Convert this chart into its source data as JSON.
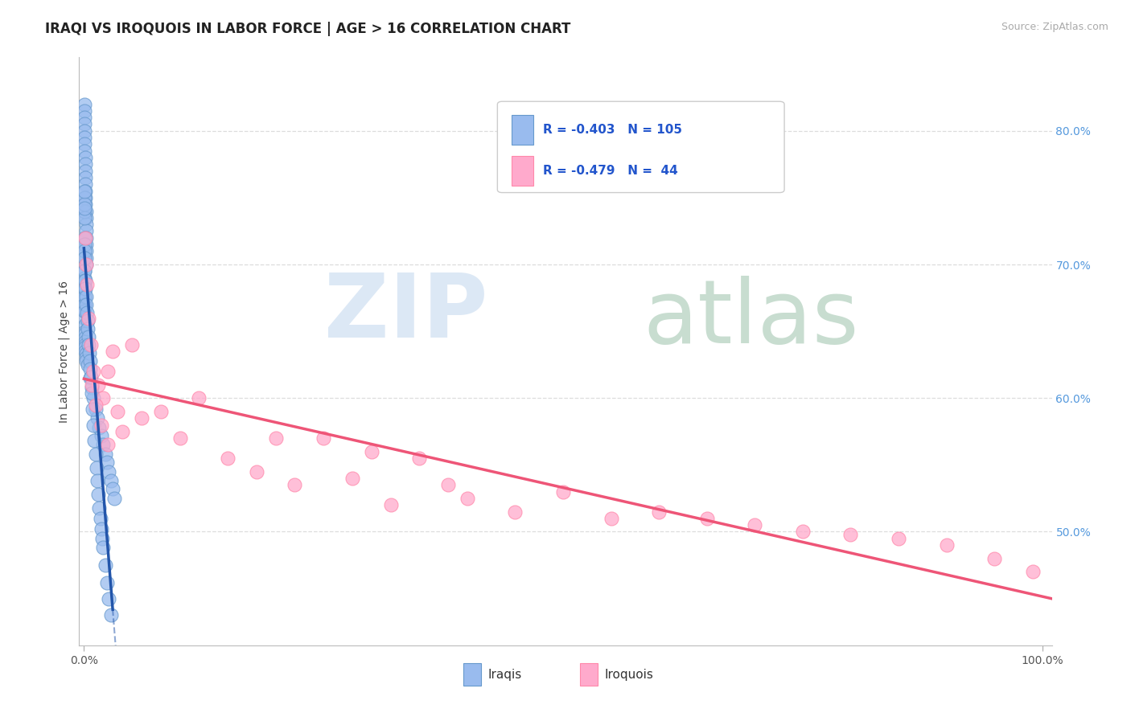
{
  "title": "IRAQI VS IROQUOIS IN LABOR FORCE | AGE > 16 CORRELATION CHART",
  "source_text": "Source: ZipAtlas.com",
  "ylabel": "In Labor Force | Age > 16",
  "xlim_min": -0.005,
  "xlim_max": 1.01,
  "ylim_min": 0.415,
  "ylim_max": 0.855,
  "xtick_labels": [
    "0.0%",
    "100.0%"
  ],
  "xtick_positions": [
    0.0,
    1.0
  ],
  "ytick_labels_right": [
    "50.0%",
    "60.0%",
    "70.0%",
    "80.0%"
  ],
  "ytick_positions_right": [
    0.5,
    0.6,
    0.7,
    0.8
  ],
  "legend_r_blue": "-0.403",
  "legend_n_blue": "105",
  "legend_r_pink": "-0.479",
  "legend_n_pink": " 44",
  "blue_scatter_color": "#99BBEE",
  "pink_scatter_color": "#FFAACC",
  "blue_line_color": "#2255AA",
  "pink_line_color": "#EE5577",
  "blue_edge_color": "#6699CC",
  "pink_edge_color": "#FF88AA",
  "legend_text_color": "#2255CC",
  "grid_color": "#DDDDDD",
  "source_color": "#AAAAAA",
  "title_fontsize": 12,
  "ylabel_fontsize": 10,
  "tick_fontsize": 10,
  "legend_fontsize": 11,
  "watermark_zip_color": "#DCE8F5",
  "watermark_atlas_color": "#C8DDD0",
  "blue_seed_x": [
    0.0002,
    0.0003,
    0.0004,
    0.0005,
    0.0006,
    0.0007,
    0.0008,
    0.0009,
    0.001,
    0.0011,
    0.0012,
    0.0013,
    0.0014,
    0.0015,
    0.0016,
    0.0017,
    0.0018,
    0.0019,
    0.002,
    0.0021,
    0.0022,
    0.0023,
    0.0024,
    0.0025,
    0.0026,
    0.0002,
    0.0003,
    0.0004,
    0.0005,
    0.0006,
    0.0007,
    0.0008,
    0.0009,
    0.001,
    0.0011,
    0.0012,
    0.0013,
    0.0014,
    0.0015,
    0.0016,
    0.0017,
    0.0018,
    0.0019,
    0.002,
    0.0002,
    0.0003,
    0.0004,
    0.0005,
    0.0006,
    0.0007,
    0.0002,
    0.0003,
    0.0004,
    0.0005,
    0.0002,
    0.0003,
    0.0002,
    0.0003,
    0.0004,
    0.0002,
    0.004,
    0.006,
    0.008,
    0.01,
    0.012,
    0.014,
    0.016,
    0.018,
    0.02,
    0.022,
    0.024,
    0.026,
    0.028,
    0.03,
    0.032,
    0.001,
    0.0015,
    0.002,
    0.0025,
    0.003,
    0.0035,
    0.004,
    0.0045,
    0.005,
    0.0055,
    0.006,
    0.0065,
    0.007,
    0.008,
    0.009,
    0.01,
    0.011,
    0.012,
    0.013,
    0.014,
    0.015,
    0.016,
    0.017,
    0.018,
    0.019,
    0.02,
    0.022,
    0.024,
    0.026,
    0.028
  ],
  "blue_seed_y": [
    0.82,
    0.815,
    0.81,
    0.805,
    0.8,
    0.795,
    0.79,
    0.785,
    0.78,
    0.775,
    0.77,
    0.765,
    0.76,
    0.755,
    0.75,
    0.745,
    0.74,
    0.735,
    0.73,
    0.725,
    0.72,
    0.715,
    0.71,
    0.705,
    0.7,
    0.695,
    0.69,
    0.685,
    0.68,
    0.675,
    0.67,
    0.665,
    0.66,
    0.655,
    0.65,
    0.648,
    0.645,
    0.642,
    0.64,
    0.638,
    0.635,
    0.633,
    0.63,
    0.628,
    0.695,
    0.688,
    0.682,
    0.676,
    0.67,
    0.665,
    0.72,
    0.715,
    0.71,
    0.705,
    0.74,
    0.735,
    0.75,
    0.745,
    0.742,
    0.755,
    0.625,
    0.615,
    0.608,
    0.6,
    0.592,
    0.585,
    0.578,
    0.572,
    0.565,
    0.558,
    0.552,
    0.545,
    0.538,
    0.532,
    0.525,
    0.688,
    0.682,
    0.676,
    0.67,
    0.664,
    0.658,
    0.652,
    0.646,
    0.64,
    0.634,
    0.628,
    0.622,
    0.616,
    0.604,
    0.592,
    0.58,
    0.568,
    0.558,
    0.548,
    0.538,
    0.528,
    0.518,
    0.51,
    0.502,
    0.495,
    0.488,
    0.475,
    0.462,
    0.45,
    0.438
  ],
  "pink_seed_x": [
    0.001,
    0.002,
    0.003,
    0.005,
    0.007,
    0.01,
    0.015,
    0.02,
    0.025,
    0.03,
    0.035,
    0.04,
    0.05,
    0.06,
    0.08,
    0.1,
    0.12,
    0.15,
    0.18,
    0.2,
    0.22,
    0.25,
    0.28,
    0.3,
    0.32,
    0.35,
    0.38,
    0.4,
    0.45,
    0.5,
    0.55,
    0.6,
    0.65,
    0.7,
    0.75,
    0.8,
    0.85,
    0.9,
    0.95,
    0.99,
    0.008,
    0.012,
    0.018,
    0.025
  ],
  "pink_seed_y": [
    0.72,
    0.7,
    0.685,
    0.66,
    0.64,
    0.62,
    0.61,
    0.6,
    0.62,
    0.635,
    0.59,
    0.575,
    0.64,
    0.585,
    0.59,
    0.57,
    0.6,
    0.555,
    0.545,
    0.57,
    0.535,
    0.57,
    0.54,
    0.56,
    0.52,
    0.555,
    0.535,
    0.525,
    0.515,
    0.53,
    0.51,
    0.515,
    0.51,
    0.505,
    0.5,
    0.498,
    0.495,
    0.49,
    0.48,
    0.47,
    0.61,
    0.595,
    0.58,
    0.565
  ]
}
